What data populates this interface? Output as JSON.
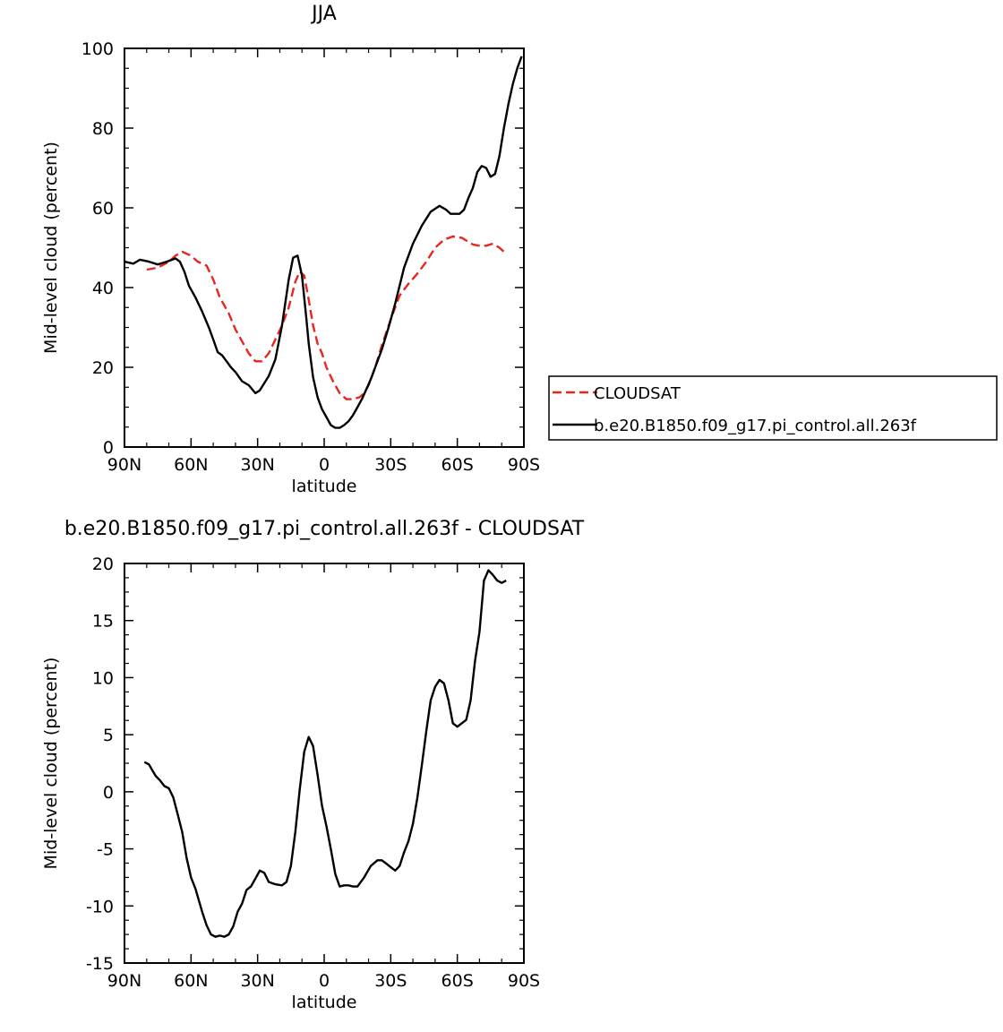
{
  "colors": {
    "cloudsat": "#e8251f",
    "model": "#000000"
  },
  "chart_data": [
    {
      "type": "line",
      "title": "JJA",
      "xlabel": "latitude",
      "ylabel": "Mid-level cloud (percent)",
      "xlim": [
        90,
        -90
      ],
      "ylim": [
        0,
        100
      ],
      "xticks": [
        90,
        60,
        30,
        0,
        -30,
        -60,
        -90
      ],
      "xtick_labels": [
        "90N",
        "60N",
        "30N",
        "0",
        "30S",
        "60S",
        "90S"
      ],
      "yticks": [
        0,
        20,
        40,
        60,
        80,
        100
      ],
      "ytick_labels": [
        "0",
        "20",
        "40",
        "60",
        "80",
        "100"
      ],
      "legend": {
        "placement": "right"
      },
      "series": [
        {
          "name": "CLOUDSAT",
          "style": "dashed",
          "color": "#e8251f",
          "x": [
            80,
            75,
            70,
            67,
            64,
            60,
            57,
            53,
            50,
            47,
            43,
            40,
            37,
            34,
            31,
            28,
            25,
            22,
            19,
            16,
            13,
            11,
            9,
            7,
            5,
            3,
            1,
            -1,
            -4,
            -7,
            -10,
            -13,
            -16,
            -18,
            -20,
            -23,
            -26,
            -30,
            -34,
            -38,
            -42,
            -46,
            -50,
            -54,
            -58,
            -62,
            -64,
            -67,
            -70,
            -73,
            -76,
            -79,
            -81
          ],
          "y": [
            44.5,
            45,
            46.5,
            48,
            49,
            48,
            46.5,
            45.5,
            42,
            37.5,
            33.5,
            29.5,
            26.5,
            23.5,
            21.5,
            21.5,
            23.5,
            27,
            30.5,
            35,
            41.5,
            44,
            43,
            37,
            30.5,
            26,
            23.5,
            20,
            16.5,
            13.5,
            12,
            12,
            12.5,
            13.5,
            15.5,
            20,
            25.5,
            32,
            38,
            41,
            43.5,
            46.5,
            50,
            52,
            52.8,
            52.5,
            51.8,
            50.8,
            50.5,
            50.5,
            51,
            50,
            49
          ]
        },
        {
          "name": "b.e20.B1850.f09_g17.pi_control.all.263f",
          "style": "solid",
          "color": "#000000",
          "x": [
            90,
            86,
            83,
            79,
            75,
            71,
            67,
            65,
            63,
            61,
            58,
            55,
            52,
            50,
            48,
            46,
            44,
            42,
            40,
            37,
            34,
            31,
            29,
            27,
            25,
            22,
            19,
            16,
            14,
            12,
            10,
            8,
            7,
            5,
            3,
            1,
            -1,
            -3,
            -5,
            -7,
            -9,
            -11,
            -13,
            -15,
            -17,
            -19,
            -21,
            -23,
            -26,
            -29,
            -32,
            -36,
            -40,
            -44,
            -48,
            -52,
            -55,
            -57,
            -59,
            -61,
            -63,
            -65,
            -67,
            -69,
            -71,
            -73,
            -75,
            -77,
            -79,
            -81,
            -83,
            -85,
            -87,
            -89
          ],
          "y": [
            46.5,
            46,
            47,
            46.5,
            45.8,
            46.5,
            47.3,
            46.5,
            44,
            40.5,
            37.5,
            34,
            30,
            27,
            23.8,
            23,
            21.5,
            20,
            18.8,
            16.5,
            15.5,
            13.5,
            14.2,
            16,
            17.8,
            22,
            30.5,
            42,
            47.5,
            48,
            43,
            32,
            26,
            17.5,
            12.5,
            9.5,
            7.5,
            5.5,
            4.8,
            4.8,
            5.5,
            6.5,
            8,
            10,
            12,
            14.5,
            17,
            20,
            24.5,
            30,
            36,
            45,
            51,
            55.5,
            59,
            60.5,
            59.5,
            58.5,
            58.5,
            58.5,
            59.5,
            62.5,
            65,
            69,
            70.5,
            70,
            67.8,
            68.5,
            73,
            80,
            86,
            91,
            95,
            98
          ]
        }
      ]
    },
    {
      "type": "line",
      "title": "b.e20.B1850.f09_g17.pi_control.all.263f  -  CLOUDSAT",
      "xlabel": "latitude",
      "ylabel": "Mid-level cloud (percent)",
      "xlim": [
        90,
        -90
      ],
      "ylim": [
        -15,
        20
      ],
      "xticks": [
        90,
        60,
        30,
        0,
        -30,
        -60,
        -90
      ],
      "xtick_labels": [
        "90N",
        "60N",
        "30N",
        "0",
        "30S",
        "60S",
        "90S"
      ],
      "yticks": [
        -15,
        -10,
        -5,
        0,
        5,
        10,
        15,
        20
      ],
      "ytick_labels": [
        "-15",
        "-10",
        "-5",
        "0",
        "5",
        "10",
        "15",
        "20"
      ],
      "series": [
        {
          "style": "solid",
          "color": "#000000",
          "x": [
            81,
            79,
            76,
            74,
            72,
            70,
            68,
            66,
            64,
            62,
            60,
            58,
            55,
            53,
            51,
            49,
            47,
            45,
            43,
            41,
            39,
            37,
            35,
            33,
            31,
            29,
            27,
            25,
            22,
            19,
            17,
            15,
            13,
            11,
            9,
            7,
            5,
            3,
            1,
            -1,
            -3,
            -5,
            -7,
            -9,
            -11,
            -13,
            -15,
            -18,
            -21,
            -24,
            -26,
            -28,
            -30,
            -32,
            -34,
            -36,
            -38,
            -40,
            -42,
            -44,
            -46,
            -48,
            -50,
            -52,
            -54,
            -56,
            -58,
            -60,
            -62,
            -64,
            -66,
            -68,
            -70,
            -72,
            -74,
            -76,
            -78,
            -80,
            -82
          ],
          "y": [
            2.6,
            2.4,
            1.4,
            1.0,
            0.5,
            0.3,
            -0.5,
            -2.0,
            -3.5,
            -5.8,
            -7.5,
            -8.5,
            -10.5,
            -11.7,
            -12.5,
            -12.7,
            -12.6,
            -12.7,
            -12.5,
            -11.8,
            -10.5,
            -9.8,
            -8.6,
            -8.3,
            -7.6,
            -6.9,
            -7.1,
            -7.9,
            -8.1,
            -8.2,
            -7.9,
            -6.5,
            -3.5,
            0.2,
            3.5,
            4.8,
            4.0,
            1.5,
            -1.2,
            -3.0,
            -5.0,
            -7.2,
            -8.3,
            -8.2,
            -8.2,
            -8.3,
            -8.3,
            -7.5,
            -6.5,
            -6.0,
            -6.0,
            -6.3,
            -6.6,
            -6.9,
            -6.5,
            -5.3,
            -4.3,
            -2.8,
            -0.5,
            2.3,
            5.3,
            8.0,
            9.2,
            9.8,
            9.5,
            8.0,
            6.0,
            5.7,
            6.0,
            6.3,
            8.0,
            11.5,
            14.0,
            18.5,
            19.4,
            19.0,
            18.5,
            18.3,
            18.5
          ]
        }
      ]
    }
  ]
}
